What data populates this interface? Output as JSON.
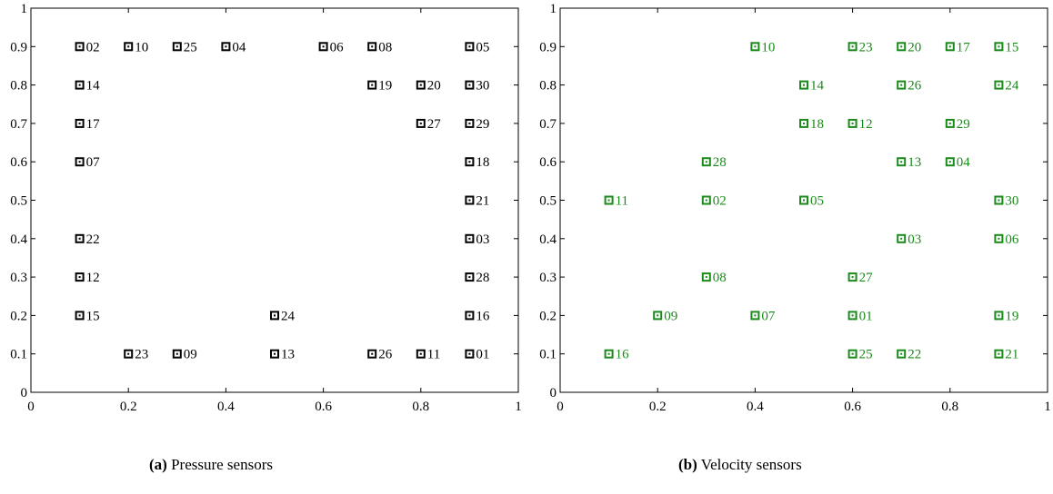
{
  "chart_data": [
    {
      "type": "scatter",
      "xlim": [
        0,
        1
      ],
      "ylim": [
        0,
        1
      ],
      "xticks": [
        "0",
        "0.2",
        "0.4",
        "0.6",
        "0.8",
        "1"
      ],
      "yticks": [
        "0",
        "0.1",
        "0.2",
        "0.3",
        "0.4",
        "0.5",
        "0.6",
        "0.7",
        "0.8",
        "0.9",
        "1"
      ],
      "grid": false,
      "color": "#000000",
      "caption_tag": "(a)",
      "caption_text": "Pressure sensors",
      "points": [
        {
          "x": 0.1,
          "y": 0.9,
          "label": "02"
        },
        {
          "x": 0.2,
          "y": 0.9,
          "label": "10"
        },
        {
          "x": 0.3,
          "y": 0.9,
          "label": "25"
        },
        {
          "x": 0.4,
          "y": 0.9,
          "label": "04"
        },
        {
          "x": 0.6,
          "y": 0.9,
          "label": "06"
        },
        {
          "x": 0.7,
          "y": 0.9,
          "label": "08"
        },
        {
          "x": 0.9,
          "y": 0.9,
          "label": "05"
        },
        {
          "x": 0.1,
          "y": 0.8,
          "label": "14"
        },
        {
          "x": 0.7,
          "y": 0.8,
          "label": "19"
        },
        {
          "x": 0.8,
          "y": 0.8,
          "label": "20"
        },
        {
          "x": 0.9,
          "y": 0.8,
          "label": "30"
        },
        {
          "x": 0.1,
          "y": 0.7,
          "label": "17"
        },
        {
          "x": 0.8,
          "y": 0.7,
          "label": "27"
        },
        {
          "x": 0.9,
          "y": 0.7,
          "label": "29"
        },
        {
          "x": 0.1,
          "y": 0.6,
          "label": "07"
        },
        {
          "x": 0.9,
          "y": 0.6,
          "label": "18"
        },
        {
          "x": 0.9,
          "y": 0.5,
          "label": "21"
        },
        {
          "x": 0.1,
          "y": 0.4,
          "label": "22"
        },
        {
          "x": 0.9,
          "y": 0.4,
          "label": "03"
        },
        {
          "x": 0.1,
          "y": 0.3,
          "label": "12"
        },
        {
          "x": 0.9,
          "y": 0.3,
          "label": "28"
        },
        {
          "x": 0.1,
          "y": 0.2,
          "label": "15"
        },
        {
          "x": 0.5,
          "y": 0.2,
          "label": "24"
        },
        {
          "x": 0.9,
          "y": 0.2,
          "label": "16"
        },
        {
          "x": 0.2,
          "y": 0.1,
          "label": "23"
        },
        {
          "x": 0.3,
          "y": 0.1,
          "label": "09"
        },
        {
          "x": 0.5,
          "y": 0.1,
          "label": "13"
        },
        {
          "x": 0.7,
          "y": 0.1,
          "label": "26"
        },
        {
          "x": 0.8,
          "y": 0.1,
          "label": "11"
        },
        {
          "x": 0.9,
          "y": 0.1,
          "label": "01"
        }
      ]
    },
    {
      "type": "scatter",
      "xlim": [
        0,
        1
      ],
      "ylim": [
        0,
        1
      ],
      "xticks": [
        "0",
        "0.2",
        "0.4",
        "0.6",
        "0.8",
        "1"
      ],
      "yticks": [
        "0",
        "0.1",
        "0.2",
        "0.3",
        "0.4",
        "0.5",
        "0.6",
        "0.7",
        "0.8",
        "0.9",
        "1"
      ],
      "grid": false,
      "color": "#1a8a1a",
      "caption_tag": "(b)",
      "caption_text": "Velocity sensors",
      "points": [
        {
          "x": 0.4,
          "y": 0.9,
          "label": "10"
        },
        {
          "x": 0.6,
          "y": 0.9,
          "label": "23"
        },
        {
          "x": 0.7,
          "y": 0.9,
          "label": "20"
        },
        {
          "x": 0.8,
          "y": 0.9,
          "label": "17"
        },
        {
          "x": 0.9,
          "y": 0.9,
          "label": "15"
        },
        {
          "x": 0.5,
          "y": 0.8,
          "label": "14"
        },
        {
          "x": 0.7,
          "y": 0.8,
          "label": "26"
        },
        {
          "x": 0.9,
          "y": 0.8,
          "label": "24"
        },
        {
          "x": 0.5,
          "y": 0.7,
          "label": "18"
        },
        {
          "x": 0.6,
          "y": 0.7,
          "label": "12"
        },
        {
          "x": 0.8,
          "y": 0.7,
          "label": "29"
        },
        {
          "x": 0.3,
          "y": 0.6,
          "label": "28"
        },
        {
          "x": 0.7,
          "y": 0.6,
          "label": "13"
        },
        {
          "x": 0.8,
          "y": 0.6,
          "label": "04"
        },
        {
          "x": 0.1,
          "y": 0.5,
          "label": "11"
        },
        {
          "x": 0.3,
          "y": 0.5,
          "label": "02"
        },
        {
          "x": 0.5,
          "y": 0.5,
          "label": "05"
        },
        {
          "x": 0.9,
          "y": 0.5,
          "label": "30"
        },
        {
          "x": 0.7,
          "y": 0.4,
          "label": "03"
        },
        {
          "x": 0.9,
          "y": 0.4,
          "label": "06"
        },
        {
          "x": 0.3,
          "y": 0.3,
          "label": "08"
        },
        {
          "x": 0.6,
          "y": 0.3,
          "label": "27"
        },
        {
          "x": 0.2,
          "y": 0.2,
          "label": "09"
        },
        {
          "x": 0.4,
          "y": 0.2,
          "label": "07"
        },
        {
          "x": 0.6,
          "y": 0.2,
          "label": "01"
        },
        {
          "x": 0.9,
          "y": 0.2,
          "label": "19"
        },
        {
          "x": 0.1,
          "y": 0.1,
          "label": "16"
        },
        {
          "x": 0.6,
          "y": 0.1,
          "label": "25"
        },
        {
          "x": 0.7,
          "y": 0.1,
          "label": "22"
        },
        {
          "x": 0.9,
          "y": 0.1,
          "label": "21"
        }
      ]
    }
  ]
}
